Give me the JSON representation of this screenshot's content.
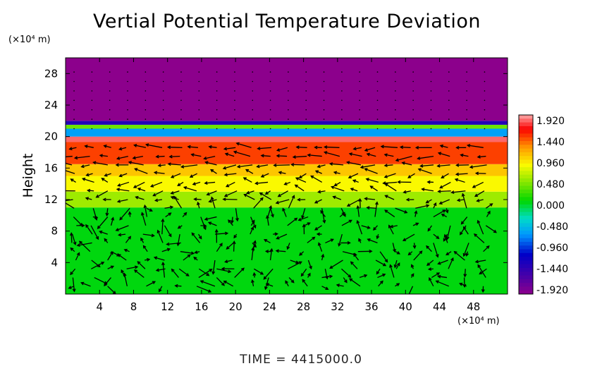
{
  "chart_data": {
    "type": "heatmap",
    "title": "Vertial Potential Temperature Deviation",
    "ylabel": "Height",
    "x_unit": "(×10⁴ m)",
    "y_unit": "(×10⁴ m)",
    "xlim": [
      0,
      52
    ],
    "ylim": [
      0,
      30
    ],
    "x_ticks": [
      "4",
      "8",
      "12",
      "16",
      "20",
      "24",
      "28",
      "32",
      "36",
      "40",
      "44",
      "48"
    ],
    "x_tick_values": [
      4,
      8,
      12,
      16,
      20,
      24,
      28,
      32,
      36,
      40,
      44,
      48
    ],
    "y_ticks": [
      "4",
      "8",
      "12",
      "16",
      "20",
      "24",
      "28"
    ],
    "y_tick_values": [
      4,
      8,
      12,
      16,
      20,
      24,
      28
    ],
    "colorbar": {
      "labels": [
        "1.920",
        "1.440",
        "0.960",
        "0.480",
        "0.000",
        "-0.480",
        "-0.960",
        "-1.440",
        "-1.920"
      ],
      "min": -1.92,
      "max": 1.92
    },
    "bands": [
      {
        "y_from": 0,
        "y_to": 11,
        "value": 0.05
      },
      {
        "y_from": 11,
        "y_to": 13,
        "value": 0.55
      },
      {
        "y_from": 13,
        "y_to": 15,
        "value": 0.85
      },
      {
        "y_from": 15,
        "y_to": 16.5,
        "value": 1.05
      },
      {
        "y_from": 16.5,
        "y_to": 19.3,
        "value": 1.45
      },
      {
        "y_from": 19.3,
        "y_to": 20,
        "value": 1.8
      },
      {
        "y_from": 20,
        "y_to": 21,
        "value": -0.6
      },
      {
        "y_from": 21,
        "y_to": 21.5,
        "value": 0.4
      },
      {
        "y_from": 21.5,
        "y_to": 22,
        "value": -1.3
      },
      {
        "y_from": 22,
        "y_to": 30,
        "value": -1.92
      }
    ],
    "vector_field": "wind vectors shown as arrows",
    "time_label": "TIME",
    "time_value": "4415000.0"
  },
  "footer": {
    "time_text": "TIME = 4415000.0"
  }
}
